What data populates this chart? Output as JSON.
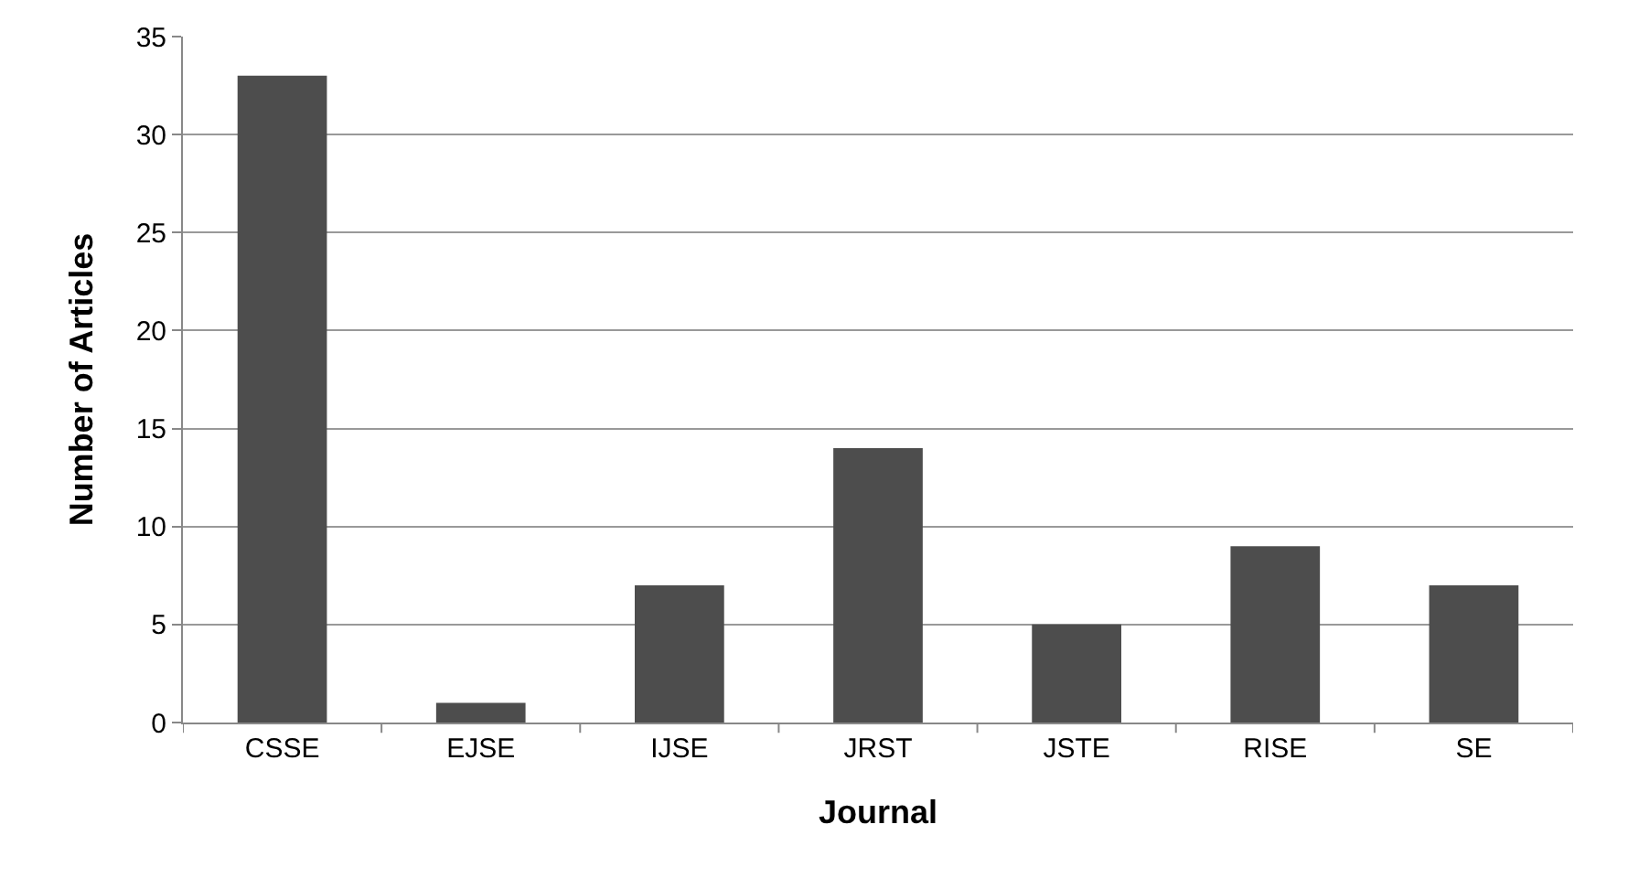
{
  "chart_data": {
    "type": "bar",
    "xlabel": "Journal",
    "ylabel": "Number of Articles",
    "categories": [
      "CSSE",
      "EJSE",
      "IJSE",
      "JRST",
      "JSTE",
      "RISE",
      "SE"
    ],
    "values": [
      33,
      1,
      7,
      14,
      5,
      9,
      7
    ],
    "color": "#4d4d4d",
    "ylim": [
      0,
      35
    ],
    "yticks": [
      0,
      5,
      10,
      15,
      20,
      25,
      30,
      35
    ],
    "grid": "y"
  }
}
